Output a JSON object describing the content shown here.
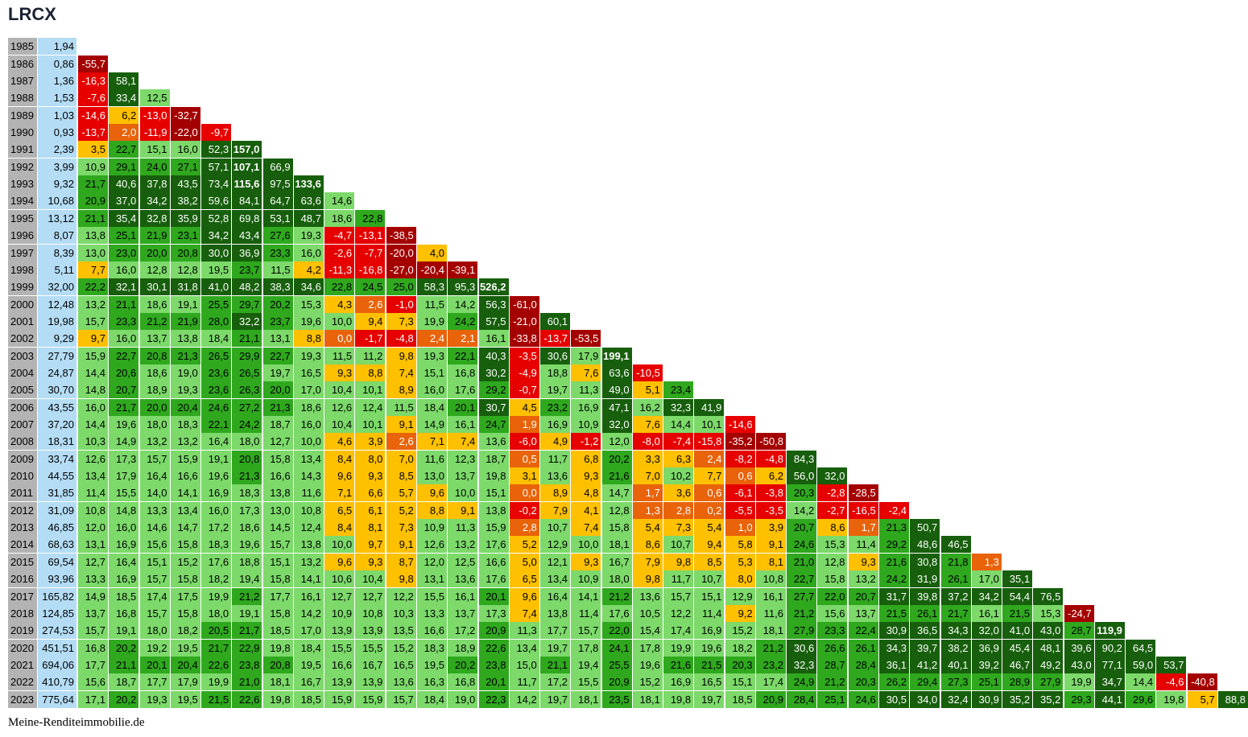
{
  "title": "LRCX",
  "footer": "Meine-Renditeimmobilie.de",
  "colors": {
    "year_bg": "#b3b3b3",
    "price_bg": "#b4dcf5",
    "dark_red": "#a50000",
    "red": "#e60000",
    "orange": "#e8630a",
    "yellow": "#ffc000",
    "light_green": "#7cd96a",
    "green": "#2fa81e",
    "dark_green": "#175f0c"
  },
  "chart_data": {
    "type": "table",
    "title": "LRCX",
    "years": [
      1985,
      1986,
      1987,
      1988,
      1989,
      1990,
      1991,
      1992,
      1993,
      1994,
      1995,
      1996,
      1997,
      1998,
      1999,
      2000,
      2001,
      2002,
      2003,
      2004,
      2005,
      2006,
      2007,
      2008,
      2009,
      2010,
      2011,
      2012,
      2013,
      2014,
      2015,
      2016,
      2017,
      2018,
      2019,
      2020,
      2021,
      2022,
      2023
    ],
    "prices": [
      "1,94",
      "0,86",
      "1,36",
      "1,53",
      "1,03",
      "0,93",
      "2,39",
      "3,99",
      "9,32",
      "10,68",
      "13,12",
      "8,07",
      "8,39",
      "5,11",
      "32,00",
      "12,48",
      "19,98",
      "9,29",
      "27,79",
      "24,87",
      "30,70",
      "43,55",
      "37,20",
      "18,31",
      "33,74",
      "44,55",
      "31,85",
      "31,09",
      "46,85",
      "68,63",
      "69,54",
      "93,96",
      "165,82",
      "124,85",
      "274,53",
      "451,51",
      "694,06",
      "410,79",
      "775,64"
    ],
    "rows": [
      [],
      [
        "-55,7"
      ],
      [
        "-16,3",
        "58,1"
      ],
      [
        "-7,6",
        "33,4",
        "12,5"
      ],
      [
        "-14,6",
        "6,2",
        "-13,0",
        "-32,7"
      ],
      [
        "-13,7",
        "2,0",
        "-11,9",
        "-22,0",
        "-9,7"
      ],
      [
        "3,5",
        "22,7",
        "15,1",
        "16,0",
        "52,3",
        "157,0"
      ],
      [
        "10,9",
        "29,1",
        "24,0",
        "27,1",
        "57,1",
        "107,1",
        "66,9"
      ],
      [
        "21,7",
        "40,6",
        "37,8",
        "43,5",
        "73,4",
        "115,6",
        "97,5",
        "133,6"
      ],
      [
        "20,9",
        "37,0",
        "34,2",
        "38,2",
        "59,6",
        "84,1",
        "64,7",
        "63,6",
        "14,6"
      ],
      [
        "21,1",
        "35,4",
        "32,8",
        "35,9",
        "52,8",
        "69,8",
        "53,1",
        "48,7",
        "18,6",
        "22,8"
      ],
      [
        "13,8",
        "25,1",
        "21,9",
        "23,1",
        "34,2",
        "43,4",
        "27,6",
        "19,3",
        "-4,7",
        "-13,1",
        "-38,5"
      ],
      [
        "13,0",
        "23,0",
        "20,0",
        "20,8",
        "30,0",
        "36,9",
        "23,3",
        "16,0",
        "-2,6",
        "-7,7",
        "-20,0",
        "4,0"
      ],
      [
        "7,7",
        "16,0",
        "12,8",
        "12,8",
        "19,5",
        "23,7",
        "11,5",
        "4,2",
        "-11,3",
        "-16,8",
        "-27,0",
        "-20,4",
        "-39,1"
      ],
      [
        "22,2",
        "32,1",
        "30,1",
        "31,8",
        "41,0",
        "48,2",
        "38,3",
        "34,6",
        "22,8",
        "24,5",
        "25,0",
        "58,3",
        "95,3",
        "526,2"
      ],
      [
        "13,2",
        "21,1",
        "18,6",
        "19,1",
        "25,5",
        "29,7",
        "20,2",
        "15,3",
        "4,3",
        "2,6",
        "-1,0",
        "11,5",
        "14,2",
        "56,3",
        "-61,0"
      ],
      [
        "15,7",
        "23,3",
        "21,2",
        "21,9",
        "28,0",
        "32,2",
        "23,7",
        "19,6",
        "10,0",
        "9,4",
        "7,3",
        "19,9",
        "24,2",
        "57,5",
        "-21,0",
        "60,1"
      ],
      [
        "9,7",
        "16,0",
        "13,7",
        "13,8",
        "18,4",
        "21,1",
        "13,1",
        "8,8",
        "0,0",
        "-1,7",
        "-4,8",
        "2,4",
        "2,1",
        "16,1",
        "-33,8",
        "-13,7",
        "-53,5"
      ],
      [
        "15,9",
        "22,7",
        "20,8",
        "21,3",
        "26,5",
        "29,9",
        "22,7",
        "19,3",
        "11,5",
        "11,2",
        "9,8",
        "19,3",
        "22,1",
        "40,3",
        "-3,5",
        "30,6",
        "17,9",
        "199,1"
      ],
      [
        "14,4",
        "20,6",
        "18,6",
        "19,0",
        "23,6",
        "26,5",
        "19,7",
        "16,5",
        "9,3",
        "8,8",
        "7,4",
        "15,1",
        "16,8",
        "30,2",
        "-4,9",
        "18,8",
        "7,6",
        "63,6",
        "-10,5"
      ],
      [
        "14,8",
        "20,7",
        "18,9",
        "19,3",
        "23,6",
        "26,3",
        "20,0",
        "17,0",
        "10,4",
        "10,1",
        "8,9",
        "16,0",
        "17,6",
        "29,2",
        "-0,7",
        "19,7",
        "11,3",
        "49,0",
        "5,1",
        "23,4"
      ],
      [
        "16,0",
        "21,7",
        "20,0",
        "20,4",
        "24,6",
        "27,2",
        "21,3",
        "18,6",
        "12,6",
        "12,4",
        "11,5",
        "18,4",
        "20,1",
        "30,7",
        "4,5",
        "23,2",
        "16,9",
        "47,1",
        "16,2",
        "32,3",
        "41,9"
      ],
      [
        "14,4",
        "19,6",
        "18,0",
        "18,3",
        "22,1",
        "24,2",
        "18,7",
        "16,0",
        "10,4",
        "10,1",
        "9,1",
        "14,9",
        "16,1",
        "24,7",
        "1,9",
        "16,9",
        "10,9",
        "32,0",
        "7,6",
        "14,4",
        "10,1",
        "-14,6"
      ],
      [
        "10,3",
        "14,9",
        "13,2",
        "13,2",
        "16,4",
        "18,0",
        "12,7",
        "10,0",
        "4,6",
        "3,9",
        "2,6",
        "7,1",
        "7,4",
        "13,6",
        "-6,0",
        "4,9",
        "-1,2",
        "12,0",
        "-8,0",
        "-7,4",
        "-15,8",
        "-35,2",
        "-50,8"
      ],
      [
        "12,6",
        "17,3",
        "15,7",
        "15,9",
        "19,1",
        "20,8",
        "15,8",
        "13,4",
        "8,4",
        "8,0",
        "7,0",
        "11,6",
        "12,3",
        "18,7",
        "0,5",
        "11,7",
        "6,8",
        "20,2",
        "3,3",
        "6,3",
        "2,4",
        "-8,2",
        "-4,8",
        "84,3"
      ],
      [
        "13,4",
        "17,9",
        "16,4",
        "16,6",
        "19,6",
        "21,3",
        "16,6",
        "14,3",
        "9,6",
        "9,3",
        "8,5",
        "13,0",
        "13,7",
        "19,8",
        "3,1",
        "13,6",
        "9,3",
        "21,6",
        "7,0",
        "10,2",
        "7,7",
        "0,6",
        "6,2",
        "56,0",
        "32,0"
      ],
      [
        "11,4",
        "15,5",
        "14,0",
        "14,1",
        "16,9",
        "18,3",
        "13,8",
        "11,6",
        "7,1",
        "6,6",
        "5,7",
        "9,6",
        "10,0",
        "15,1",
        "0,0",
        "8,9",
        "4,8",
        "14,7",
        "1,7",
        "3,6",
        "0,6",
        "-6,1",
        "-3,8",
        "20,3",
        "-2,8",
        "-28,5"
      ],
      [
        "10,8",
        "14,8",
        "13,3",
        "13,4",
        "16,0",
        "17,3",
        "13,0",
        "10,8",
        "6,5",
        "6,1",
        "5,2",
        "8,8",
        "9,1",
        "13,8",
        "-0,2",
        "7,9",
        "4,1",
        "12,8",
        "1,3",
        "2,8",
        "0,2",
        "-5,5",
        "-3,5",
        "14,2",
        "-2,7",
        "-16,5",
        "-2,4"
      ],
      [
        "12,0",
        "16,0",
        "14,6",
        "14,7",
        "17,2",
        "18,6",
        "14,5",
        "12,4",
        "8,4",
        "8,1",
        "7,3",
        "10,9",
        "11,3",
        "15,9",
        "2,8",
        "10,7",
        "7,4",
        "15,8",
        "5,4",
        "7,3",
        "5,4",
        "1,0",
        "3,9",
        "20,7",
        "8,6",
        "1,7",
        "21,3",
        "50,7"
      ],
      [
        "13,1",
        "16,9",
        "15,6",
        "15,8",
        "18,3",
        "19,6",
        "15,7",
        "13,8",
        "10,0",
        "9,7",
        "9,1",
        "12,6",
        "13,2",
        "17,6",
        "5,2",
        "12,9",
        "10,0",
        "18,1",
        "8,6",
        "10,7",
        "9,4",
        "5,8",
        "9,1",
        "24,6",
        "15,3",
        "11,4",
        "29,2",
        "48,6",
        "46,5"
      ],
      [
        "12,7",
        "16,4",
        "15,1",
        "15,2",
        "17,6",
        "18,8",
        "15,1",
        "13,2",
        "9,6",
        "9,3",
        "8,7",
        "12,0",
        "12,5",
        "16,6",
        "5,0",
        "12,1",
        "9,3",
        "16,7",
        "7,9",
        "9,8",
        "8,5",
        "5,3",
        "8,1",
        "21,0",
        "12,8",
        "9,3",
        "21,6",
        "30,8",
        "21,8",
        "1,3"
      ],
      [
        "13,3",
        "16,9",
        "15,7",
        "15,8",
        "18,2",
        "19,4",
        "15,8",
        "14,1",
        "10,6",
        "10,4",
        "9,8",
        "13,1",
        "13,6",
        "17,6",
        "6,5",
        "13,4",
        "10,9",
        "18,0",
        "9,8",
        "11,7",
        "10,7",
        "8,0",
        "10,8",
        "22,7",
        "15,8",
        "13,2",
        "24,2",
        "31,9",
        "26,1",
        "17,0",
        "35,1"
      ],
      [
        "14,9",
        "18,5",
        "17,4",
        "17,5",
        "19,9",
        "21,2",
        "17,7",
        "16,1",
        "12,7",
        "12,7",
        "12,2",
        "15,5",
        "16,1",
        "20,1",
        "9,6",
        "16,4",
        "14,1",
        "21,2",
        "13,6",
        "15,7",
        "15,1",
        "12,9",
        "16,1",
        "27,7",
        "22,0",
        "20,7",
        "31,7",
        "39,8",
        "37,2",
        "34,2",
        "54,4",
        "76,5"
      ],
      [
        "13,7",
        "16,8",
        "15,7",
        "15,8",
        "18,0",
        "19,1",
        "15,8",
        "14,2",
        "10,9",
        "10,8",
        "10,3",
        "13,3",
        "13,7",
        "17,3",
        "7,4",
        "13,8",
        "11,4",
        "17,6",
        "10,5",
        "12,2",
        "11,4",
        "9,2",
        "11,6",
        "21,2",
        "15,6",
        "13,7",
        "21,5",
        "26,1",
        "21,7",
        "16,1",
        "21,5",
        "15,3",
        "-24,7"
      ],
      [
        "15,7",
        "19,1",
        "18,0",
        "18,2",
        "20,5",
        "21,7",
        "18,5",
        "17,0",
        "13,9",
        "13,9",
        "13,5",
        "16,6",
        "17,2",
        "20,9",
        "11,3",
        "17,7",
        "15,7",
        "22,0",
        "15,4",
        "17,4",
        "16,9",
        "15,2",
        "18,1",
        "27,9",
        "23,3",
        "22,4",
        "30,9",
        "36,5",
        "34,3",
        "32,0",
        "41,0",
        "43,0",
        "28,7",
        "119,9"
      ],
      [
        "16,8",
        "20,2",
        "19,2",
        "19,5",
        "21,7",
        "22,9",
        "19,8",
        "18,4",
        "15,5",
        "15,5",
        "15,2",
        "18,3",
        "18,9",
        "22,6",
        "13,4",
        "19,7",
        "17,8",
        "24,1",
        "17,8",
        "19,9",
        "19,6",
        "18,2",
        "21,2",
        "30,6",
        "26,6",
        "26,1",
        "34,3",
        "39,7",
        "38,2",
        "36,9",
        "45,4",
        "48,1",
        "39,6",
        "90,2",
        "64,5"
      ],
      [
        "17,7",
        "21,1",
        "20,1",
        "20,4",
        "22,6",
        "23,8",
        "20,8",
        "19,5",
        "16,6",
        "16,7",
        "16,5",
        "19,5",
        "20,2",
        "23,8",
        "15,0",
        "21,1",
        "19,4",
        "25,5",
        "19,6",
        "21,6",
        "21,5",
        "20,3",
        "23,2",
        "32,3",
        "28,7",
        "28,4",
        "36,1",
        "41,2",
        "40,1",
        "39,2",
        "46,7",
        "49,2",
        "43,0",
        "77,1",
        "59,0",
        "53,7"
      ],
      [
        "15,6",
        "18,7",
        "17,7",
        "17,9",
        "19,9",
        "21,0",
        "18,1",
        "16,7",
        "13,9",
        "13,9",
        "13,6",
        "16,3",
        "16,8",
        "20,1",
        "11,7",
        "17,2",
        "15,5",
        "20,9",
        "15,2",
        "16,9",
        "16,5",
        "15,1",
        "17,4",
        "24,9",
        "21,2",
        "20,3",
        "26,2",
        "29,4",
        "27,3",
        "25,1",
        "28,9",
        "27,9",
        "19,9",
        "34,7",
        "14,4",
        "-4,6",
        "-40,8"
      ],
      [
        "17,1",
        "20,2",
        "19,3",
        "19,5",
        "21,5",
        "22,6",
        "19,8",
        "18,5",
        "15,9",
        "15,9",
        "15,7",
        "18,4",
        "19,0",
        "22,3",
        "14,2",
        "19,7",
        "18,1",
        "23,5",
        "18,1",
        "19,8",
        "19,7",
        "18,5",
        "20,9",
        "28,4",
        "25,1",
        "24,6",
        "30,5",
        "34,0",
        "32,4",
        "30,9",
        "35,2",
        "35,2",
        "29,3",
        "44,1",
        "29,6",
        "19,8",
        "5,7",
        "88,8"
      ]
    ]
  }
}
